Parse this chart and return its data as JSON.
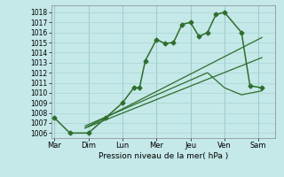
{
  "xlabel": "Pression niveau de la mer( hPa )",
  "bg_color": "#c5e8e8",
  "grid_color": "#a8d4d4",
  "line_color": "#2d6e2d",
  "ylim": [
    1005.5,
    1018.7
  ],
  "yticks": [
    1006,
    1007,
    1008,
    1009,
    1010,
    1011,
    1012,
    1013,
    1014,
    1015,
    1016,
    1017,
    1018
  ],
  "day_labels": [
    "Mar",
    "Dim",
    "Lun",
    "Mer",
    "Jeu",
    "Ven",
    "Sam"
  ],
  "day_positions": [
    0,
    1,
    2,
    3,
    4,
    5,
    6
  ],
  "xlim": [
    -0.1,
    6.5
  ],
  "series1_x": [
    0.0,
    0.45,
    1.0,
    1.5,
    2.0,
    2.33,
    2.5,
    2.67,
    3.0,
    3.25,
    3.5,
    3.75,
    4.0,
    4.25,
    4.5,
    4.75,
    5.0,
    5.5,
    5.75,
    6.1
  ],
  "series1_y": [
    1007.5,
    1006.0,
    1006.0,
    1007.5,
    1009.0,
    1010.5,
    1010.5,
    1013.2,
    1015.3,
    1014.9,
    1015.0,
    1016.8,
    1017.0,
    1015.6,
    1016.0,
    1017.8,
    1018.0,
    1016.0,
    1010.7,
    1010.5
  ],
  "series2_x": [
    0.9,
    6.1
  ],
  "series2_y": [
    1006.5,
    1015.5
  ],
  "series3_x": [
    0.9,
    6.1
  ],
  "series3_y": [
    1006.5,
    1013.5
  ],
  "series4_x": [
    0.9,
    4.5,
    5.0,
    5.5,
    6.1
  ],
  "series4_y": [
    1006.7,
    1012.0,
    1010.5,
    1009.8,
    1010.2
  ],
  "ytick_fontsize": 5.5,
  "xtick_fontsize": 6.0,
  "xlabel_fontsize": 6.5
}
